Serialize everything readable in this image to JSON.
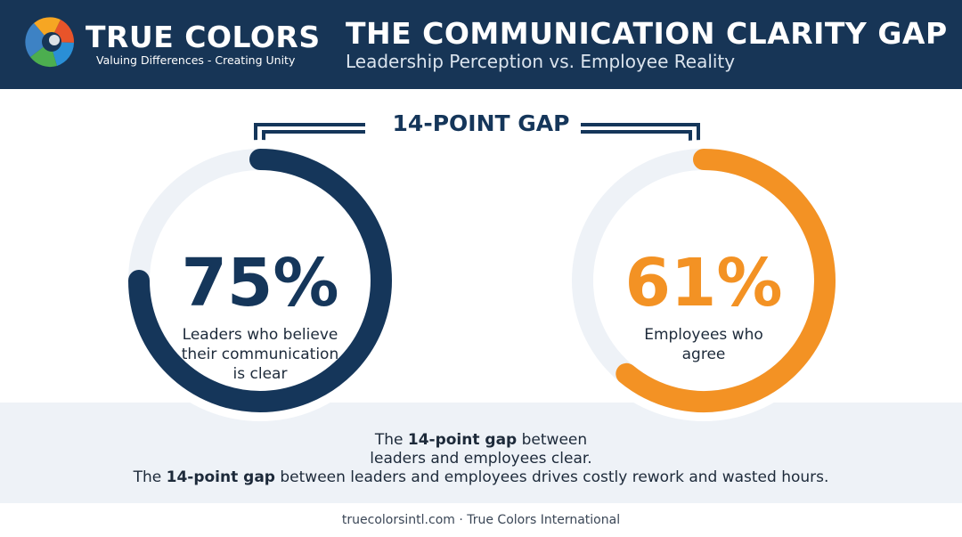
{
  "brand": {
    "name": "TRUE COLORS",
    "tagline": "Valuing Differences - Creating Unity"
  },
  "header": {
    "title": "THE COMMUNICATION CLARITY GAP",
    "subtitle": "Leadership Perception vs. Employee Reality"
  },
  "chart_data": {
    "type": "donut",
    "title": "THE COMMUNICATION CLARITY GAP",
    "subtitle": "Leadership Perception vs. Employee Reality",
    "series": [
      {
        "value_label": "75%",
        "value": 75,
        "label_lines": [
          "Leaders who believe",
          "their communication",
          "is clear"
        ],
        "color": "#15365a"
      },
      {
        "value_label": "61%",
        "value": 61,
        "label_lines": [
          "Employees who",
          "agree"
        ],
        "color": "#f39224"
      }
    ],
    "gap_label": "14-POINT GAP",
    "track_color": "#eef2f7"
  },
  "caption": {
    "line1_pre": "The ",
    "line1_bold": "14-point gap",
    "line1_post": " between",
    "line1b": "leaders and employees clear.",
    "line2_pre": "The ",
    "line2_bold": "14-point gap",
    "line2_post": " between leaders and employees drives costly rework and wasted hours."
  },
  "footer": "truecolorsintl.com · True Colors International"
}
